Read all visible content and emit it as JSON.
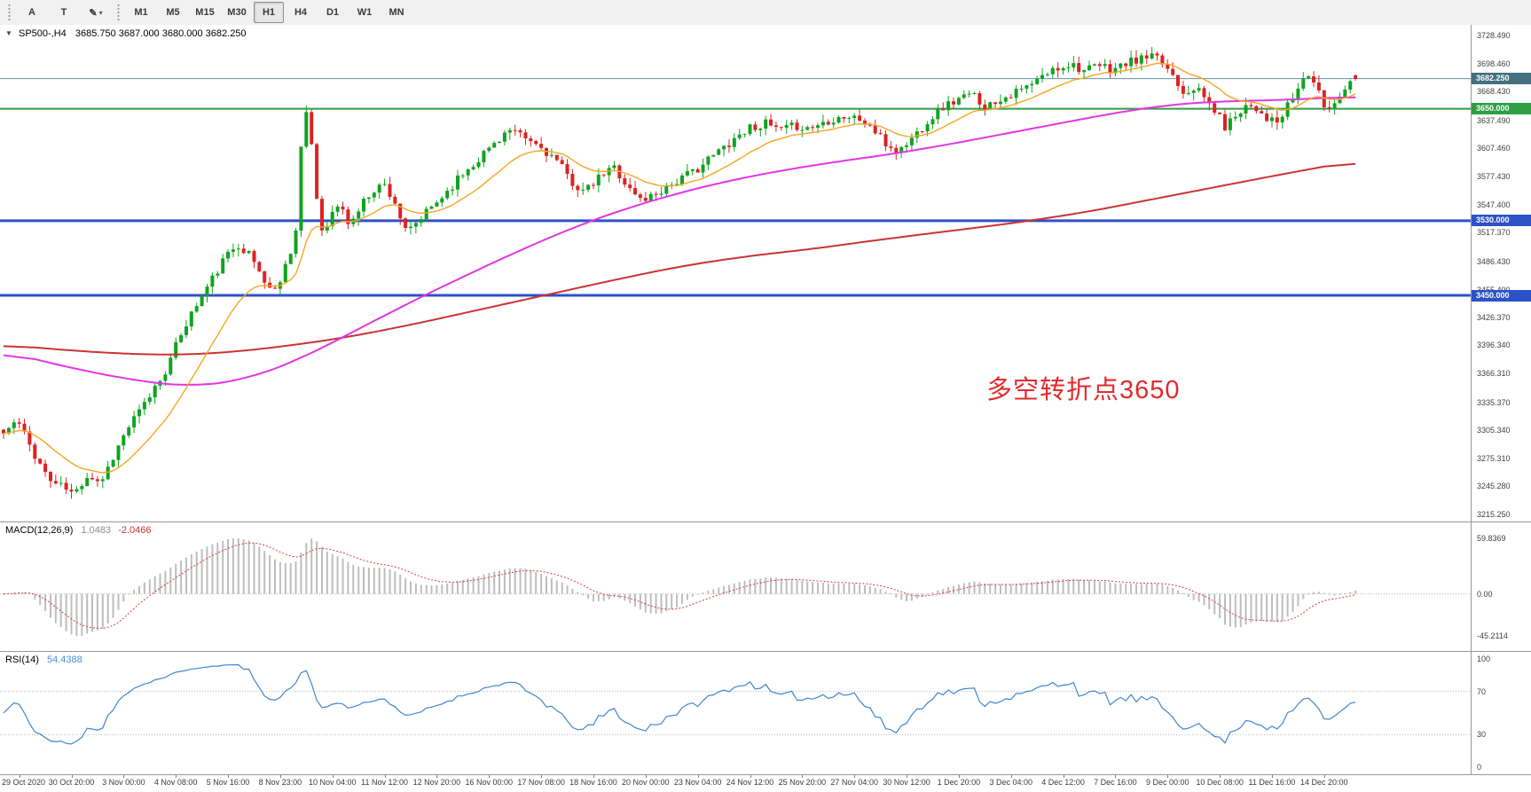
{
  "toolbar": {
    "tools": [
      {
        "id": "a",
        "label": "A"
      },
      {
        "id": "t",
        "label": "T"
      },
      {
        "id": "draw",
        "label": "✎",
        "dropdown": true
      }
    ],
    "timeframes": [
      "M1",
      "M5",
      "M15",
      "M30",
      "H1",
      "H4",
      "D1",
      "W1",
      "MN"
    ],
    "active_timeframe": "H1"
  },
  "main_chart": {
    "collapse_arrow": "▼",
    "symbol_period": "SP500-,H4",
    "ohlc": "3685.750 3687.000 3680.000 3682.250",
    "annotation": "多空转折点3650",
    "price_axis_labels": [
      "3728.490",
      "3698.460",
      "3668.430",
      "3637.490",
      "3607.460",
      "3577.430",
      "3547.400",
      "3517.370",
      "3486.430",
      "3455.400",
      "3426.370",
      "3396.340",
      "3366.310",
      "3335.370",
      "3305.340",
      "3275.310",
      "3245.280",
      "3215.250"
    ]
  },
  "macd_panel": {
    "name": "MACD(12,26,9)",
    "value_main": "1.0483",
    "value_signal": "-2.0466",
    "axis_labels": [
      "59.8369",
      "0.00",
      "-45.2114"
    ]
  },
  "rsi_panel": {
    "name": "RSI(14)",
    "value": "54.4388",
    "axis_labels": [
      "100",
      "70",
      "30",
      "0"
    ]
  },
  "time_axis": {
    "labels": [
      "29 Oct 2020",
      "30 Oct 20:00",
      "3 Nov 00:00",
      "4 Nov 08:00",
      "5 Nov 16:00",
      "8 Nov 23:00",
      "10 Nov 04:00",
      "11 Nov 12:00",
      "12 Nov 20:00",
      "16 Nov 00:00",
      "17 Nov 08:00",
      "18 Nov 16:00",
      "20 Nov 00:00",
      "23 Nov 04:00",
      "24 Nov 12:00",
      "25 Nov 20:00",
      "27 Nov 04:00",
      "30 Nov 12:00",
      "1 Dec 20:00",
      "3 Dec 04:00",
      "4 Dec 12:00",
      "7 Dec 16:00",
      "9 Dec 00:00",
      "10 Dec 08:00",
      "11 Dec 16:00",
      "14 Dec 20:00"
    ]
  },
  "chart_data": {
    "type": "candlestick",
    "symbol": "SP500-",
    "timeframe": "H4",
    "current_bar": {
      "o": 3685.75,
      "h": 3687.0,
      "l": 3680.0,
      "c": 3682.25
    },
    "price_axis": {
      "min": 3215.25,
      "max": 3728.49
    },
    "candle_count": 260,
    "seed": 11,
    "noise": 5,
    "wick": 8,
    "horizontal_lines": [
      {
        "price": 3682.25,
        "label": "3682.250",
        "color": "#5f93a5",
        "badge": "#44707f",
        "width": 1,
        "role": "current-price"
      },
      {
        "price": 3650.0,
        "label": "3650.000",
        "color": "#2f9e45",
        "width": 2,
        "role": "pivot-line"
      },
      {
        "price": 3530.0,
        "label": "3530.000",
        "color": "#2d52c8",
        "width": 3,
        "role": "support-line"
      },
      {
        "price": 3450.0,
        "label": "3450.000",
        "color": "#2d52c8",
        "width": 3,
        "role": "support-line"
      }
    ],
    "close_keyframes": [
      [
        0,
        3302
      ],
      [
        0.01,
        3316
      ],
      [
        0.022,
        3282
      ],
      [
        0.034,
        3252
      ],
      [
        0.046,
        3243
      ],
      [
        0.052,
        3236
      ],
      [
        0.062,
        3258
      ],
      [
        0.072,
        3250
      ],
      [
        0.082,
        3280
      ],
      [
        0.092,
        3308
      ],
      [
        0.103,
        3330
      ],
      [
        0.112,
        3352
      ],
      [
        0.122,
        3375
      ],
      [
        0.132,
        3412
      ],
      [
        0.142,
        3438
      ],
      [
        0.152,
        3462
      ],
      [
        0.163,
        3488
      ],
      [
        0.173,
        3506
      ],
      [
        0.183,
        3492
      ],
      [
        0.192,
        3468
      ],
      [
        0.2,
        3452
      ],
      [
        0.208,
        3480
      ],
      [
        0.216,
        3515
      ],
      [
        0.222,
        3652
      ],
      [
        0.227,
        3625
      ],
      [
        0.234,
        3518
      ],
      [
        0.241,
        3532
      ],
      [
        0.248,
        3548
      ],
      [
        0.256,
        3525
      ],
      [
        0.264,
        3545
      ],
      [
        0.272,
        3562
      ],
      [
        0.281,
        3570
      ],
      [
        0.289,
        3552
      ],
      [
        0.298,
        3515
      ],
      [
        0.306,
        3528
      ],
      [
        0.315,
        3542
      ],
      [
        0.327,
        3560
      ],
      [
        0.338,
        3578
      ],
      [
        0.35,
        3595
      ],
      [
        0.362,
        3612
      ],
      [
        0.373,
        3627
      ],
      [
        0.385,
        3618
      ],
      [
        0.396,
        3610
      ],
      [
        0.408,
        3596
      ],
      [
        0.42,
        3572
      ],
      [
        0.43,
        3560
      ],
      [
        0.442,
        3578
      ],
      [
        0.452,
        3588
      ],
      [
        0.462,
        3565
      ],
      [
        0.472,
        3552
      ],
      [
        0.481,
        3558
      ],
      [
        0.492,
        3568
      ],
      [
        0.503,
        3576
      ],
      [
        0.515,
        3588
      ],
      [
        0.527,
        3602
      ],
      [
        0.54,
        3618
      ],
      [
        0.552,
        3630
      ],
      [
        0.563,
        3634
      ],
      [
        0.575,
        3626
      ],
      [
        0.586,
        3632
      ],
      [
        0.596,
        3629
      ],
      [
        0.607,
        3636
      ],
      [
        0.619,
        3642
      ],
      [
        0.631,
        3640
      ],
      [
        0.642,
        3630
      ],
      [
        0.652,
        3612
      ],
      [
        0.662,
        3604
      ],
      [
        0.673,
        3620
      ],
      [
        0.684,
        3638
      ],
      [
        0.695,
        3652
      ],
      [
        0.706,
        3660
      ],
      [
        0.717,
        3665
      ],
      [
        0.727,
        3652
      ],
      [
        0.738,
        3662
      ],
      [
        0.75,
        3668
      ],
      [
        0.761,
        3676
      ],
      [
        0.772,
        3688
      ],
      [
        0.783,
        3696
      ],
      [
        0.79,
        3699
      ],
      [
        0.8,
        3690
      ],
      [
        0.81,
        3696
      ],
      [
        0.82,
        3692
      ],
      [
        0.83,
        3698
      ],
      [
        0.84,
        3703
      ],
      [
        0.85,
        3705
      ],
      [
        0.858,
        3698
      ],
      [
        0.866,
        3685
      ],
      [
        0.873,
        3668
      ],
      [
        0.88,
        3674
      ],
      [
        0.888,
        3662
      ],
      [
        0.896,
        3648
      ],
      [
        0.904,
        3630
      ],
      [
        0.912,
        3645
      ],
      [
        0.92,
        3656
      ],
      [
        0.928,
        3650
      ],
      [
        0.936,
        3638
      ],
      [
        0.943,
        3634
      ],
      [
        0.951,
        3655
      ],
      [
        0.958,
        3672
      ],
      [
        0.964,
        3690
      ],
      [
        0.97,
        3676
      ],
      [
        0.976,
        3654
      ],
      [
        0.982,
        3650
      ],
      [
        0.988,
        3666
      ],
      [
        0.994,
        3676
      ],
      [
        1,
        3682.25
      ]
    ],
    "ma_fast_period": 16,
    "ma_mid_keyframes": [
      [
        0,
        3390
      ],
      [
        0.05,
        3372
      ],
      [
        0.1,
        3358
      ],
      [
        0.14,
        3352
      ],
      [
        0.18,
        3360
      ],
      [
        0.22,
        3382
      ],
      [
        0.26,
        3412
      ],
      [
        0.3,
        3442
      ],
      [
        0.34,
        3470
      ],
      [
        0.38,
        3497
      ],
      [
        0.42,
        3522
      ],
      [
        0.46,
        3543
      ],
      [
        0.5,
        3560
      ],
      [
        0.54,
        3574
      ],
      [
        0.58,
        3585
      ],
      [
        0.62,
        3594
      ],
      [
        0.66,
        3602
      ],
      [
        0.7,
        3612
      ],
      [
        0.74,
        3623
      ],
      [
        0.78,
        3634
      ],
      [
        0.82,
        3645
      ],
      [
        0.86,
        3654
      ],
      [
        0.9,
        3658
      ],
      [
        0.94,
        3659
      ],
      [
        0.97,
        3661
      ],
      [
        1,
        3663
      ]
    ],
    "ma_slow_keyframes": [
      [
        0,
        3397
      ],
      [
        0.04,
        3392
      ],
      [
        0.08,
        3388
      ],
      [
        0.12,
        3386
      ],
      [
        0.16,
        3388
      ],
      [
        0.2,
        3394
      ],
      [
        0.25,
        3404
      ],
      [
        0.3,
        3418
      ],
      [
        0.35,
        3434
      ],
      [
        0.4,
        3450
      ],
      [
        0.45,
        3466
      ],
      [
        0.5,
        3481
      ],
      [
        0.55,
        3492
      ],
      [
        0.6,
        3500
      ],
      [
        0.65,
        3510
      ],
      [
        0.7,
        3519
      ],
      [
        0.75,
        3528
      ],
      [
        0.8,
        3539
      ],
      [
        0.85,
        3553
      ],
      [
        0.9,
        3567
      ],
      [
        0.95,
        3581
      ],
      [
        1,
        3594
      ]
    ],
    "macd": {
      "params": "12,26,9",
      "main": 1.0483,
      "signal": -2.0466,
      "scale_max": 59.8369,
      "scale_min": -45.2114
    },
    "rsi": {
      "period": 14,
      "value": 54.4388,
      "levels": [
        70,
        30
      ],
      "range": [
        0,
        100
      ]
    }
  },
  "colors": {
    "up_candle": "#10a321",
    "down_candle": "#dd2222",
    "ma_fast": "#f5a623",
    "ma_mid": "#e236e2",
    "ma_slow": "#c93434",
    "macd_hist": "#bdbdbd",
    "macd_signal": "#d43c3c",
    "rsi_line": "#3f86cc",
    "rsi_levels": "#b5b5c9",
    "annotation": "#e12b2b"
  }
}
